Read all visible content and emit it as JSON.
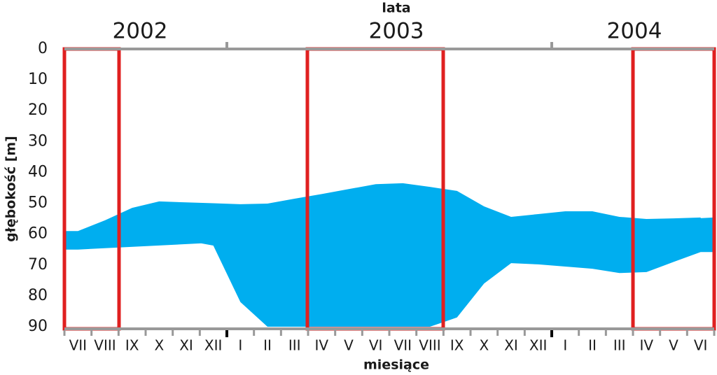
{
  "chart_data": {
    "type": "band",
    "top_axis_label": "lata",
    "years": [
      "2002",
      "2003",
      "2004"
    ],
    "x_label": "miesiące",
    "y_label": "głębokość [m]",
    "categories": [
      "VII",
      "VIII",
      "IX",
      "X",
      "XI",
      "XII",
      "I",
      "II",
      "III",
      "IV",
      "V",
      "VI",
      "VII",
      "VIII",
      "IX",
      "X",
      "XI",
      "XII",
      "I",
      "II",
      "III",
      "IV",
      "V",
      "VI"
    ],
    "series": [
      {
        "color": "#00aeef",
        "values": [
          59,
          55.5,
          51.5,
          49.4,
          49.7,
          50,
          50.3,
          50.1,
          48.5,
          47,
          45.4,
          43.8,
          43.5,
          44.7,
          46,
          51,
          54.4,
          53.5,
          52.6,
          52.6,
          54.4,
          55.1,
          54.9,
          54.6
        ]
      },
      {
        "color": "#00aeef",
        "values": [
          65,
          62.8,
          60.5,
          60.5,
          62.1,
          63.7,
          82,
          90,
          90,
          90,
          90,
          90,
          90,
          90,
          87,
          76,
          69.4,
          69.8,
          70.5,
          71.2,
          72.6,
          72.3,
          69,
          65.8
        ]
      }
    ],
    "ylim": [
      0,
      90
    ],
    "yticks": [
      0,
      10,
      20,
      30,
      40,
      50,
      60,
      70,
      80,
      90
    ],
    "y_inverted": true
  }
}
